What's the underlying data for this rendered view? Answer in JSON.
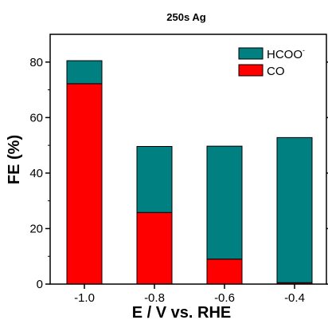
{
  "chart_data": {
    "type": "bar",
    "stacked": true,
    "title": "250s Ag",
    "xlabel": "E / V vs. RHE",
    "ylabel": "FE (%)",
    "categories": [
      "-1.0",
      "-0.8",
      "-0.6",
      "-0.4"
    ],
    "x_ticks": [
      "-1.0",
      "-0.8",
      "-0.6",
      "-0.4"
    ],
    "ylim": [
      0,
      90
    ],
    "y_ticks": [
      "0",
      "20",
      "40",
      "60",
      "80"
    ],
    "grid": false,
    "legend_position": "top-right",
    "series": [
      {
        "name": "CO",
        "values": [
          72.2,
          25.8,
          9.0,
          0.5
        ],
        "color": "#ff0000"
      },
      {
        "name": "HCOO",
        "name_superscript": "-",
        "values": [
          8.3,
          23.8,
          40.7,
          52.3
        ],
        "color": "#008080"
      }
    ],
    "legend": [
      {
        "label": "HCOO",
        "superscript": "-",
        "color": "#008080"
      },
      {
        "label": "CO",
        "color": "#ff0000"
      }
    ]
  }
}
